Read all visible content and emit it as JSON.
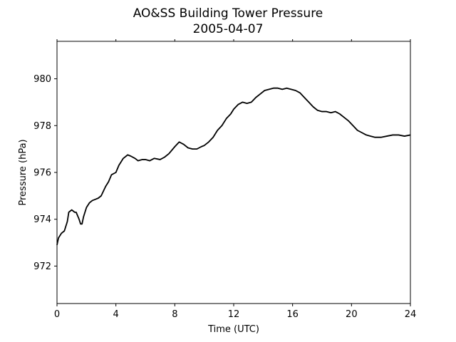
{
  "chart_data": {
    "type": "line",
    "title": "AO&SS Building Tower Pressure",
    "subtitle": "2005-04-07",
    "xlabel": "Time (UTC)",
    "ylabel": "Pressure (hPa)",
    "xlim": [
      0,
      24
    ],
    "ylim": [
      970.4,
      981.6
    ],
    "xticks": [
      0,
      4,
      8,
      12,
      16,
      20,
      24
    ],
    "yticks": [
      972,
      974,
      976,
      978,
      980
    ],
    "grid": false,
    "line_color": "#000000",
    "series": [
      {
        "x": [
          0,
          0.1,
          0.3,
          0.5,
          0.7,
          0.8,
          1.0,
          1.2,
          1.3,
          1.5,
          1.6,
          1.7,
          1.8,
          2.0,
          2.2,
          2.4,
          2.6,
          2.8,
          3.0,
          3.3,
          3.5,
          3.7,
          4.0,
          4.2,
          4.5,
          4.8,
          5.0,
          5.3,
          5.5,
          5.8,
          6.0,
          6.3,
          6.6,
          7.0,
          7.3,
          7.6,
          8.0,
          8.3,
          8.6,
          8.9,
          9.2,
          9.5,
          9.8,
          10.0,
          10.3,
          10.6,
          10.9,
          11.2,
          11.5,
          11.8,
          12.0,
          12.3,
          12.6,
          12.9,
          13.2,
          13.5,
          13.8,
          14.1,
          14.4,
          14.7,
          15.0,
          15.3,
          15.6,
          15.9,
          16.2,
          16.5,
          16.8,
          17.1,
          17.4,
          17.7,
          18.0,
          18.3,
          18.6,
          18.9,
          19.2,
          19.5,
          19.8,
          20.1,
          20.4,
          20.7,
          21.0,
          21.3,
          21.6,
          22.0,
          22.4,
          22.8,
          23.2,
          23.6,
          24.0
        ],
        "y": [
          972.9,
          973.2,
          973.4,
          973.5,
          973.9,
          974.3,
          974.4,
          974.3,
          974.3,
          974.0,
          973.8,
          973.8,
          974.1,
          974.5,
          974.7,
          974.8,
          974.85,
          974.9,
          975.0,
          975.4,
          975.6,
          975.9,
          976.0,
          976.3,
          976.6,
          976.75,
          976.7,
          976.6,
          976.5,
          976.55,
          976.55,
          976.5,
          976.6,
          976.55,
          976.65,
          976.8,
          977.1,
          977.3,
          977.2,
          977.05,
          977.0,
          977.0,
          977.1,
          977.15,
          977.3,
          977.5,
          977.8,
          978.0,
          978.3,
          978.5,
          978.7,
          978.9,
          979.0,
          978.95,
          979.0,
          979.2,
          979.35,
          979.5,
          979.55,
          979.6,
          979.6,
          979.55,
          979.6,
          979.55,
          979.5,
          979.4,
          979.2,
          979.0,
          978.8,
          978.65,
          978.6,
          978.6,
          978.55,
          978.6,
          978.5,
          978.35,
          978.2,
          978.0,
          977.8,
          977.7,
          977.6,
          977.55,
          977.5,
          977.5,
          977.55,
          977.6,
          977.6,
          977.55,
          977.6
        ]
      }
    ]
  }
}
